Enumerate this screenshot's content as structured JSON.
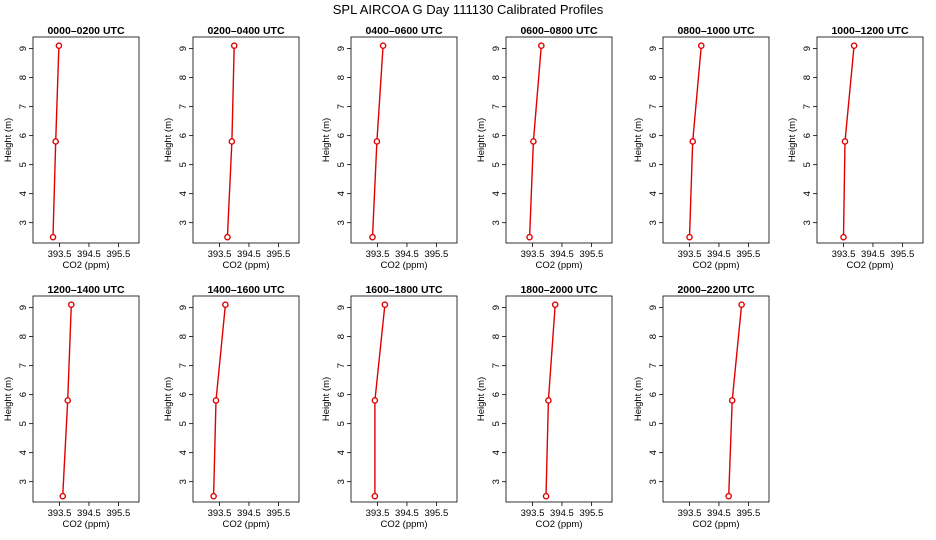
{
  "page": {
    "title": "SPL AIRCOA G  Day 111130  Calibrated Profiles"
  },
  "colors": {
    "series": "#e00000",
    "axes": "#000000",
    "background": "#ffffff"
  },
  "chart_data": [
    {
      "type": "line",
      "title": "0000–0200 UTC",
      "xlabel": "CO2 (ppm)",
      "ylabel": "Height (m)",
      "xlim": [
        392.6,
        396.2
      ],
      "ylim": [
        2.3,
        9.4
      ],
      "xticks": [
        393.5,
        394.5,
        395.5
      ],
      "yticks": [
        3,
        4,
        5,
        6,
        7,
        8,
        9
      ],
      "grid": false,
      "series": [
        {
          "x": [
            393.28,
            393.37,
            393.48
          ],
          "y": [
            2.5,
            5.8,
            9.1
          ]
        }
      ]
    },
    {
      "type": "line",
      "title": "0200–0400 UTC",
      "xlabel": "CO2 (ppm)",
      "ylabel": "Height (m)",
      "xlim": [
        392.6,
        396.2
      ],
      "ylim": [
        2.3,
        9.4
      ],
      "xticks": [
        393.5,
        394.5,
        395.5
      ],
      "yticks": [
        3,
        4,
        5,
        6,
        7,
        8,
        9
      ],
      "grid": false,
      "series": [
        {
          "x": [
            393.77,
            393.92,
            394.0
          ],
          "y": [
            2.5,
            5.8,
            9.1
          ]
        }
      ]
    },
    {
      "type": "line",
      "title": "0400–0600 UTC",
      "xlabel": "CO2 (ppm)",
      "ylabel": "Height (m)",
      "xlim": [
        392.6,
        396.2
      ],
      "ylim": [
        2.3,
        9.4
      ],
      "xticks": [
        393.5,
        394.5,
        395.5
      ],
      "yticks": [
        3,
        4,
        5,
        6,
        7,
        8,
        9
      ],
      "grid": false,
      "series": [
        {
          "x": [
            393.33,
            393.48,
            393.69
          ],
          "y": [
            2.5,
            5.8,
            9.1
          ]
        }
      ]
    },
    {
      "type": "line",
      "title": "0600–0800 UTC",
      "xlabel": "CO2 (ppm)",
      "ylabel": "Height (m)",
      "xlim": [
        392.6,
        396.2
      ],
      "ylim": [
        2.3,
        9.4
      ],
      "xticks": [
        393.5,
        394.5,
        395.5
      ],
      "yticks": [
        3,
        4,
        5,
        6,
        7,
        8,
        9
      ],
      "grid": false,
      "series": [
        {
          "x": [
            393.4,
            393.53,
            393.8
          ],
          "y": [
            2.5,
            5.8,
            9.1
          ]
        }
      ]
    },
    {
      "type": "line",
      "title": "0800–1000 UTC",
      "xlabel": "CO2 (ppm)",
      "ylabel": "Height (m)",
      "xlim": [
        392.6,
        396.2
      ],
      "ylim": [
        2.3,
        9.4
      ],
      "xticks": [
        393.5,
        394.5,
        395.5
      ],
      "yticks": [
        3,
        4,
        5,
        6,
        7,
        8,
        9
      ],
      "grid": false,
      "series": [
        {
          "x": [
            393.5,
            393.61,
            393.9
          ],
          "y": [
            2.5,
            5.8,
            9.1
          ]
        }
      ]
    },
    {
      "type": "line",
      "title": "1000–1200 UTC",
      "xlabel": "CO2 (ppm)",
      "ylabel": "Height (m)",
      "xlim": [
        392.6,
        396.2
      ],
      "ylim": [
        2.3,
        9.4
      ],
      "xticks": [
        393.5,
        394.5,
        395.5
      ],
      "yticks": [
        3,
        4,
        5,
        6,
        7,
        8,
        9
      ],
      "grid": false,
      "series": [
        {
          "x": [
            393.5,
            393.55,
            393.86
          ],
          "y": [
            2.5,
            5.8,
            9.1
          ]
        }
      ]
    },
    {
      "type": "line",
      "title": "1200–1400 UTC",
      "xlabel": "CO2 (ppm)",
      "ylabel": "Height (m)",
      "xlim": [
        392.6,
        396.2
      ],
      "ylim": [
        2.3,
        9.4
      ],
      "xticks": [
        393.5,
        394.5,
        395.5
      ],
      "yticks": [
        3,
        4,
        5,
        6,
        7,
        8,
        9
      ],
      "grid": false,
      "series": [
        {
          "x": [
            393.61,
            393.78,
            393.9
          ],
          "y": [
            2.5,
            5.8,
            9.1
          ]
        }
      ]
    },
    {
      "type": "line",
      "title": "1400–1600 UTC",
      "xlabel": "CO2 (ppm)",
      "ylabel": "Height (m)",
      "xlim": [
        392.6,
        396.2
      ],
      "ylim": [
        2.3,
        9.4
      ],
      "xticks": [
        393.5,
        394.5,
        395.5
      ],
      "yticks": [
        3,
        4,
        5,
        6,
        7,
        8,
        9
      ],
      "grid": false,
      "series": [
        {
          "x": [
            393.3,
            393.38,
            393.7
          ],
          "y": [
            2.5,
            5.8,
            9.1
          ]
        }
      ]
    },
    {
      "type": "line",
      "title": "1600–1800 UTC",
      "xlabel": "CO2 (ppm)",
      "ylabel": "Height (m)",
      "xlim": [
        392.6,
        396.2
      ],
      "ylim": [
        2.3,
        9.4
      ],
      "xticks": [
        393.5,
        394.5,
        395.5
      ],
      "yticks": [
        3,
        4,
        5,
        6,
        7,
        8,
        9
      ],
      "grid": false,
      "series": [
        {
          "x": [
            393.41,
            393.41,
            393.75
          ],
          "y": [
            2.5,
            5.8,
            9.1
          ]
        }
      ]
    },
    {
      "type": "line",
      "title": "1800–2000 UTC",
      "xlabel": "CO2 (ppm)",
      "ylabel": "Height (m)",
      "xlim": [
        392.6,
        396.2
      ],
      "ylim": [
        2.3,
        9.4
      ],
      "xticks": [
        393.5,
        394.5,
        395.5
      ],
      "yticks": [
        3,
        4,
        5,
        6,
        7,
        8,
        9
      ],
      "grid": false,
      "series": [
        {
          "x": [
            393.96,
            394.04,
            394.27
          ],
          "y": [
            2.5,
            5.8,
            9.1
          ]
        }
      ]
    },
    {
      "type": "line",
      "title": "2000–2200 UTC",
      "xlabel": "CO2 (ppm)",
      "ylabel": "Height (m)",
      "xlim": [
        392.6,
        396.2
      ],
      "ylim": [
        2.3,
        9.4
      ],
      "xticks": [
        393.5,
        394.5,
        395.5
      ],
      "yticks": [
        3,
        4,
        5,
        6,
        7,
        8,
        9
      ],
      "grid": false,
      "series": [
        {
          "x": [
            394.83,
            394.95,
            395.27
          ],
          "y": [
            2.5,
            5.8,
            9.1
          ]
        }
      ]
    }
  ]
}
